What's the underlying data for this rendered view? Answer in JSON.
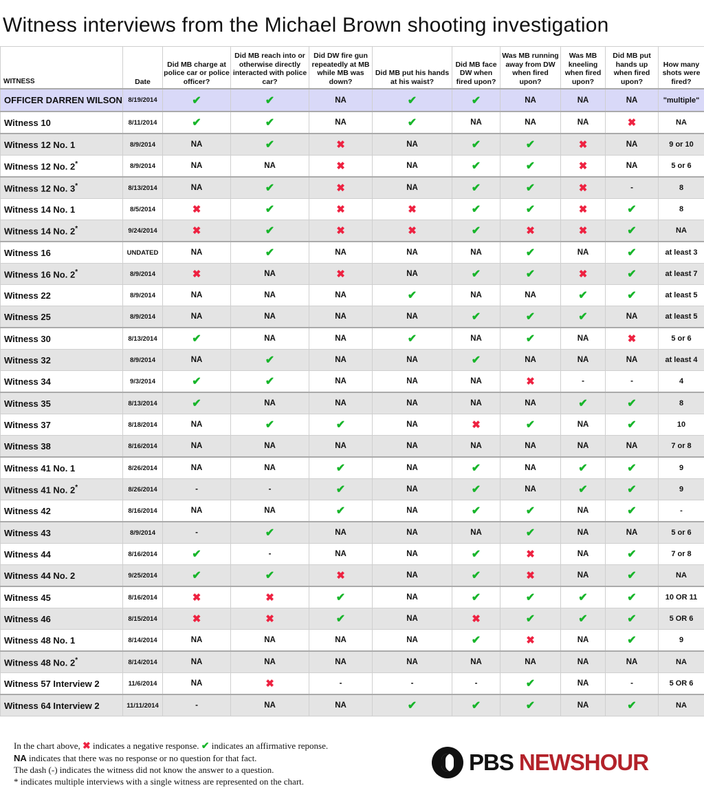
{
  "title": "Witness interviews from the Michael Brown shooting investigation",
  "colors": {
    "affirmative": "#17b52a",
    "negative": "#ee2241",
    "officer_row": "#d9d9f8",
    "alt_row": "#e4e4e4",
    "brand_red": "#b3222a"
  },
  "headers": [
    "WITNESS",
    "Date",
    "Did MB charge at police car or police officer?",
    "Did MB reach into or otherwise directly interacted with police car?",
    "Did DW fire gun repeatedly at MB while MB was down?",
    "Did MB put his hands at his waist?",
    "Did MB face DW when fired upon?",
    "Was MB running away from DW when fired upon?",
    "Was MB kneeling when fired upon?",
    "Did MB put hands up when fired upon?",
    "How many shots were fired?"
  ],
  "rows": [
    {
      "witness": "OFFICER DARREN WILSON",
      "star": "",
      "date": "8/19/2014",
      "cells": [
        "yes",
        "yes",
        "NA",
        "yes",
        "yes",
        "NA",
        "NA",
        "NA"
      ],
      "shots": "\"multiple\""
    },
    {
      "witness": "Witness 10",
      "star": "",
      "date": "8/11/2014",
      "cells": [
        "yes",
        "yes",
        "NA",
        "yes",
        "NA",
        "NA",
        "NA",
        "no"
      ],
      "shots": "NA"
    },
    {
      "witness": "Witness 12 No. 1",
      "star": "",
      "date": "8/9/2014",
      "cells": [
        "NA",
        "yes",
        "no",
        "NA",
        "yes",
        "yes",
        "no",
        "NA"
      ],
      "shots": "9 or 10"
    },
    {
      "witness": "Witness 12 No. 2",
      "star": "*",
      "date": "8/9/2014",
      "cells": [
        "NA",
        "NA",
        "no",
        "NA",
        "yes",
        "yes",
        "no",
        "NA"
      ],
      "shots": "5 or 6"
    },
    {
      "witness": "Witness 12 No. 3",
      "star": "*",
      "date": "8/13/2014",
      "cells": [
        "NA",
        "yes",
        "no",
        "NA",
        "yes",
        "yes",
        "no",
        "-"
      ],
      "shots": "8"
    },
    {
      "witness": "Witness 14 No. 1",
      "star": "",
      "date": "8/5/2014",
      "cells": [
        "no",
        "yes",
        "no",
        "no",
        "yes",
        "yes",
        "no",
        "yes"
      ],
      "shots": "8"
    },
    {
      "witness": "Witness 14 No. 2",
      "star": "*",
      "date": "9/24/2014",
      "cells": [
        "no",
        "yes",
        "no",
        "no",
        "yes",
        "no",
        "no",
        "yes"
      ],
      "shots": "NA"
    },
    {
      "witness": "Witness 16",
      "star": "",
      "date": "UNDATED",
      "cells": [
        "NA",
        "yes",
        "NA",
        "NA",
        "NA",
        "yes",
        "NA",
        "yes"
      ],
      "shots": "at least 3"
    },
    {
      "witness": "Witness 16 No. 2",
      "star": "*",
      "date": "8/9/2014",
      "cells": [
        "no",
        "NA",
        "no",
        "NA",
        "yes",
        "yes",
        "no",
        "yes"
      ],
      "shots": "at least 7"
    },
    {
      "witness": "Witness 22",
      "star": "",
      "date": "8/9/2014",
      "cells": [
        "NA",
        "NA",
        "NA",
        "yes",
        "NA",
        "NA",
        "yes",
        "yes"
      ],
      "shots": "at least 5"
    },
    {
      "witness": "Witness 25",
      "star": "",
      "date": "8/9/2014",
      "cells": [
        "NA",
        "NA",
        "NA",
        "NA",
        "yes",
        "yes",
        "yes",
        "NA"
      ],
      "shots": "at least 5"
    },
    {
      "witness": "Witness 30",
      "star": "",
      "date": "8/13/2014",
      "cells": [
        "yes",
        "NA",
        "NA",
        "yes",
        "NA",
        "yes",
        "NA",
        "no"
      ],
      "shots": "5 or 6"
    },
    {
      "witness": "Witness 32",
      "star": "",
      "date": "8/9/2014",
      "cells": [
        "NA",
        "yes",
        "NA",
        "NA",
        "yes",
        "NA",
        "NA",
        "NA"
      ],
      "shots": "at least 4"
    },
    {
      "witness": "Witness 34",
      "star": "",
      "date": "9/3/2014",
      "cells": [
        "yes",
        "yes",
        "NA",
        "NA",
        "NA",
        "no",
        "-",
        "-"
      ],
      "shots": "4"
    },
    {
      "witness": "Witness 35",
      "star": "",
      "date": "8/13/2014",
      "cells": [
        "yes",
        "NA",
        "NA",
        "NA",
        "NA",
        "NA",
        "yes",
        "yes"
      ],
      "shots": "8"
    },
    {
      "witness": "Witness 37",
      "star": "",
      "date": "8/18/2014",
      "cells": [
        "NA",
        "yes",
        "yes",
        "NA",
        "no",
        "yes",
        "NA",
        "yes"
      ],
      "shots": "10"
    },
    {
      "witness": "Witness 38",
      "star": "",
      "date": "8/16/2014",
      "cells": [
        "NA",
        "NA",
        "NA",
        "NA",
        "NA",
        "NA",
        "NA",
        "NA"
      ],
      "shots": "7 or 8"
    },
    {
      "witness": "Witness 41 No. 1",
      "star": "",
      "date": "8/26/2014",
      "cells": [
        "NA",
        "NA",
        "yes",
        "NA",
        "yes",
        "NA",
        "yes",
        "yes"
      ],
      "shots": "9"
    },
    {
      "witness": "Witness 41 No. 2",
      "star": "*",
      "date": "8/26/2014",
      "cells": [
        "-",
        "-",
        "yes",
        "NA",
        "yes",
        "NA",
        "yes",
        "yes"
      ],
      "shots": "9"
    },
    {
      "witness": "Witness 42",
      "star": "",
      "date": "8/16/2014",
      "cells": [
        "NA",
        "NA",
        "yes",
        "NA",
        "yes",
        "yes",
        "NA",
        "yes"
      ],
      "shots": "-"
    },
    {
      "witness": "Witness 43",
      "star": "",
      "date": "8/9/2014",
      "cells": [
        "-",
        "yes",
        "NA",
        "NA",
        "NA",
        "yes",
        "NA",
        "NA"
      ],
      "shots": "5 or 6"
    },
    {
      "witness": "Witness 44",
      "star": "",
      "date": "8/16/2014",
      "cells": [
        "yes",
        "-",
        "NA",
        "NA",
        "yes",
        "no",
        "NA",
        "yes"
      ],
      "shots": "7 or 8"
    },
    {
      "witness": "Witness 44 No. 2",
      "star": "",
      "date": "9/25/2014",
      "cells": [
        "yes",
        "yes",
        "no",
        "NA",
        "yes",
        "no",
        "NA",
        "yes"
      ],
      "shots": "NA"
    },
    {
      "witness": "Witness 45",
      "star": "",
      "date": "8/16/2014",
      "cells": [
        "no",
        "no",
        "yes",
        "NA",
        "yes",
        "yes",
        "yes",
        "yes"
      ],
      "shots": "10 OR 11"
    },
    {
      "witness": "Witness 46",
      "star": "",
      "date": "8/15/2014",
      "cells": [
        "no",
        "no",
        "yes",
        "NA",
        "no",
        "yes",
        "yes",
        "yes"
      ],
      "shots": "5 OR 6"
    },
    {
      "witness": "Witness 48 No. 1",
      "star": "",
      "date": "8/14/2014",
      "cells": [
        "NA",
        "NA",
        "NA",
        "NA",
        "yes",
        "no",
        "NA",
        "yes"
      ],
      "shots": "9"
    },
    {
      "witness": "Witness 48 No. 2",
      "star": "*",
      "date": "8/14/2014",
      "cells": [
        "NA",
        "NA",
        "NA",
        "NA",
        "NA",
        "NA",
        "NA",
        "NA"
      ],
      "shots": "NA"
    },
    {
      "witness": "Witness 57 Interview 2",
      "star": "",
      "date": "11/6/2014",
      "cells": [
        "NA",
        "no",
        "-",
        "-",
        "-",
        "yes",
        "NA",
        "-"
      ],
      "shots": "5 OR 6"
    },
    {
      "witness": "Witness 64 Interview 2",
      "star": "",
      "date": "11/11/2014",
      "cells": [
        "-",
        "NA",
        "NA",
        "yes",
        "yes",
        "yes",
        "NA",
        "yes"
      ],
      "shots": "NA"
    }
  ],
  "legend": {
    "line1_a": "In the chart above,",
    "line1_b": "indicates a negative response.",
    "line1_c": "indicates an affirmative reponse.",
    "line2_a": "NA",
    "line2_b": "indicates that there was no response or no question for that fact.",
    "line3": "The dash (-) indicates the witness did not know the answer to a question.",
    "line4": "* indicates multiple interviews with a single witness are represented on the chart."
  },
  "logo": {
    "pbs": "PBS",
    "newshour": "NEWSHOUR"
  }
}
